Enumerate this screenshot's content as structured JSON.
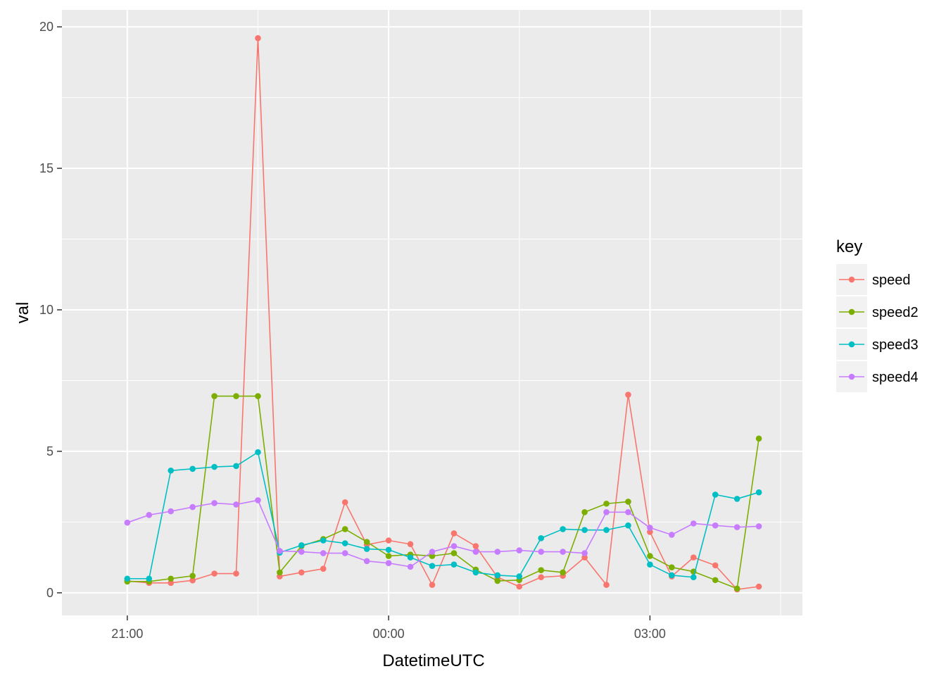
{
  "chart_data": {
    "type": "line",
    "xlabel": "DatetimeUTC",
    "ylabel": "val",
    "x_ticks": [
      "21:00",
      "00:00",
      "03:00"
    ],
    "y_ticks": [
      0,
      5,
      10,
      15,
      20
    ],
    "xlim": [
      "20:15",
      "04:45"
    ],
    "ylim": [
      -0.8,
      20.6
    ],
    "grid": true,
    "legend": {
      "title": "key",
      "position": "right"
    },
    "x": [
      "21:00",
      "21:15",
      "21:30",
      "21:45",
      "22:00",
      "22:15",
      "22:30",
      "22:45",
      "23:00",
      "23:15",
      "23:30",
      "23:45",
      "00:00",
      "00:15",
      "00:30",
      "00:45",
      "01:00",
      "01:15",
      "01:30",
      "01:45",
      "02:00",
      "02:15",
      "02:30",
      "02:45",
      "03:00",
      "03:15",
      "03:30",
      "03:45",
      "04:00",
      "04:15"
    ],
    "series": [
      {
        "name": "speed",
        "color": "#F8766D",
        "values": [
          0.42,
          0.35,
          0.35,
          0.44,
          0.68,
          0.68,
          19.6,
          0.58,
          0.72,
          0.85,
          3.2,
          1.7,
          1.85,
          1.72,
          0.28,
          2.1,
          1.65,
          0.55,
          0.22,
          0.55,
          0.6,
          1.25,
          0.28,
          7.0,
          2.15,
          0.58,
          1.25,
          0.97,
          0.12,
          0.22
        ]
      },
      {
        "name": "speed2",
        "color": "#7CAE00",
        "values": [
          0.4,
          0.4,
          0.5,
          0.6,
          6.95,
          6.95,
          6.95,
          0.72,
          1.65,
          1.9,
          2.25,
          1.8,
          1.3,
          1.35,
          1.3,
          1.4,
          0.82,
          0.42,
          0.45,
          0.8,
          0.72,
          2.85,
          3.15,
          3.22,
          1.3,
          0.9,
          0.75,
          0.45,
          0.15,
          5.45
        ]
      },
      {
        "name": "speed3",
        "color": "#00BFC4",
        "values": [
          0.5,
          0.5,
          4.32,
          4.38,
          4.45,
          4.48,
          4.97,
          1.42,
          1.68,
          1.85,
          1.75,
          1.55,
          1.52,
          1.25,
          0.95,
          1.0,
          0.72,
          0.62,
          0.58,
          1.93,
          2.25,
          2.22,
          2.22,
          2.38,
          1.0,
          0.62,
          0.55,
          3.47,
          3.32,
          3.55
        ]
      },
      {
        "name": "speed4",
        "color": "#C77CFF",
        "values": [
          2.48,
          2.75,
          2.88,
          3.03,
          3.17,
          3.12,
          3.27,
          1.48,
          1.45,
          1.4,
          1.4,
          1.12,
          1.05,
          0.92,
          1.45,
          1.65,
          1.45,
          1.45,
          1.5,
          1.45,
          1.45,
          1.4,
          2.85,
          2.85,
          2.3,
          2.05,
          2.45,
          2.38,
          2.32,
          2.35
        ]
      }
    ]
  }
}
